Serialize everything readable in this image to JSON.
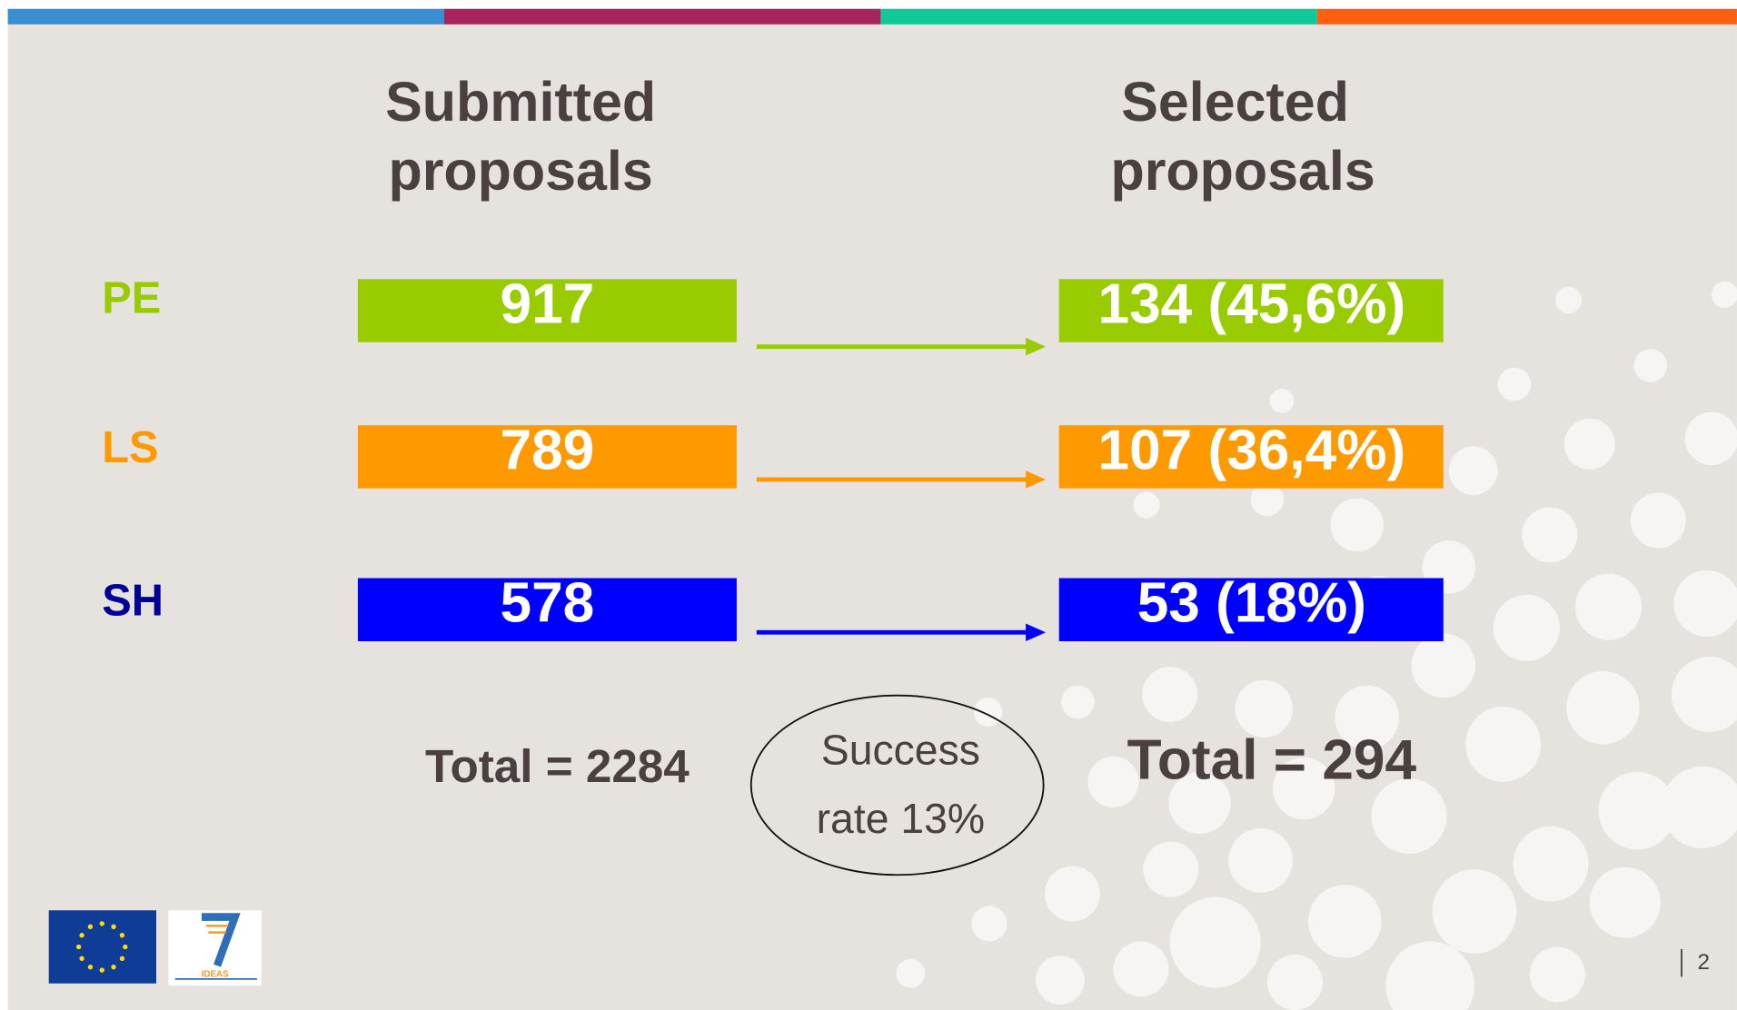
{
  "columns": {
    "submitted": [
      "Submitted",
      "proposals"
    ],
    "selected": [
      "Selected",
      "proposals"
    ]
  },
  "rows": [
    {
      "label": "PE",
      "submitted": "917",
      "selected": "134 (45,6%)"
    },
    {
      "label": "LS",
      "submitted": "789",
      "selected": "107 (36,4%)"
    },
    {
      "label": "SH",
      "submitted": "578",
      "selected": "53 (18%)"
    }
  ],
  "totals": {
    "submitted": "Total = 2284",
    "selected": "Total = 294"
  },
  "success_rate": [
    "Success",
    "rate 13%"
  ],
  "logo": {
    "fp7": "IDEAS"
  },
  "page_number": "2"
}
